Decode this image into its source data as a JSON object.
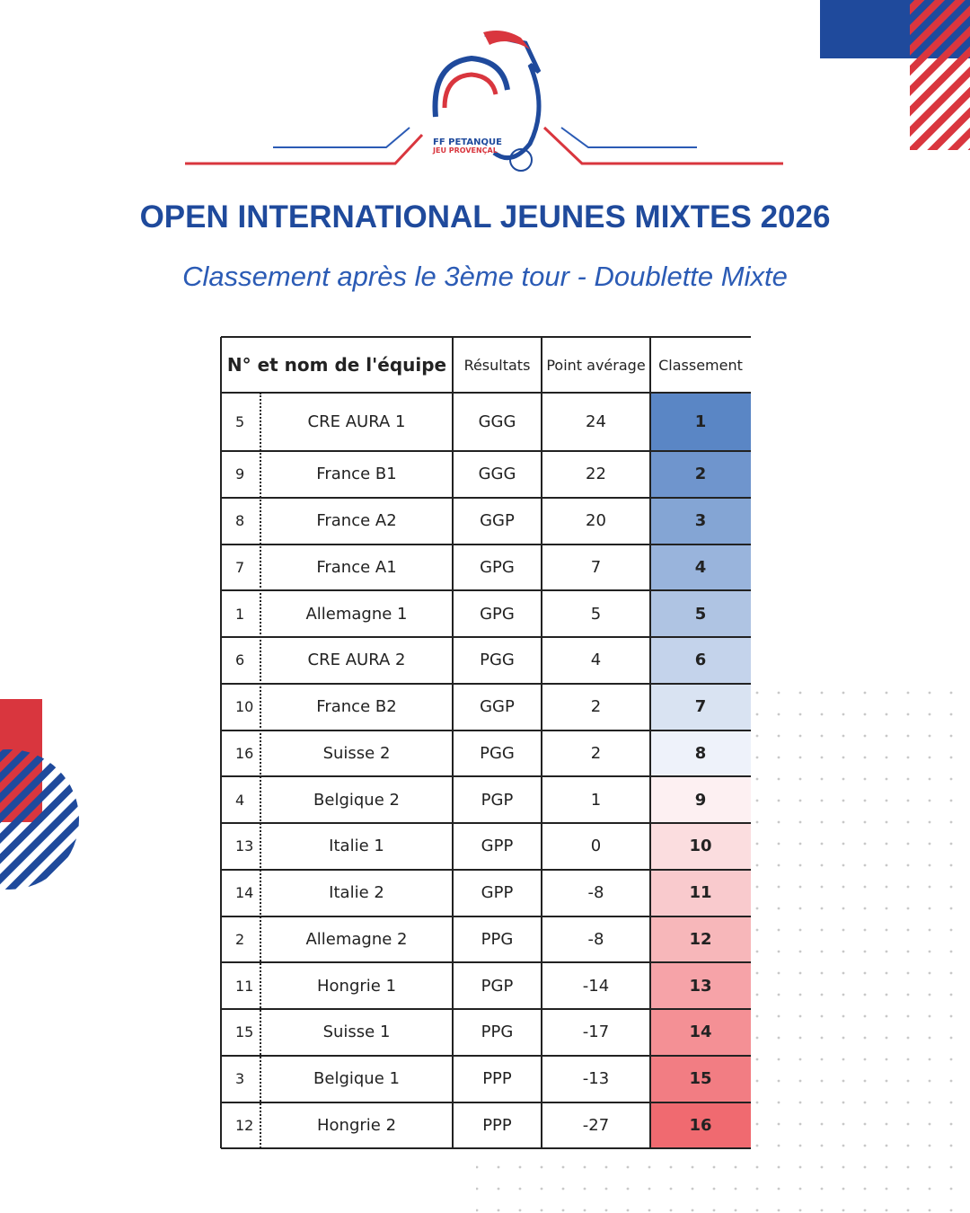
{
  "logo": {
    "line1": "FF PETANQUE",
    "line2": "JEU PROVENÇAL"
  },
  "title": "OPEN INTERNATIONAL JEUNES MIXTES 2026",
  "subtitle": "Classement après le 3ème tour - Doublette Mixte",
  "table": {
    "headers": [
      "N° et nom de l'équipe",
      "Résultats",
      "Point avérage",
      "Classement"
    ],
    "rows": [
      [
        5,
        "CRE AURA 1",
        "GGG",
        24,
        1
      ],
      [
        9,
        "France B1",
        "GGG",
        22,
        2
      ],
      [
        8,
        "France A2",
        "GGP",
        20,
        3
      ],
      [
        7,
        "France A1",
        "GPG",
        7,
        4
      ],
      [
        1,
        "Allemagne 1",
        "GPG",
        5,
        5
      ],
      [
        6,
        "CRE AURA 2",
        "PGG",
        4,
        6
      ],
      [
        10,
        "France B2",
        "GGP",
        2,
        7
      ],
      [
        16,
        "Suisse 2",
        "PGG",
        2,
        8
      ],
      [
        4,
        "Belgique 2",
        "PGP",
        1,
        9
      ],
      [
        13,
        "Italie 1",
        "GPP",
        0,
        10
      ],
      [
        14,
        "Italie 2",
        "GPP",
        -8,
        11
      ],
      [
        2,
        "Allemagne 2",
        "PPG",
        -8,
        12
      ],
      [
        11,
        "Hongrie 1",
        "PGP",
        -14,
        13
      ],
      [
        15,
        "Suisse 1",
        "PPG",
        -17,
        14
      ],
      [
        3,
        "Belgique 1",
        "PPP",
        -13,
        15
      ],
      [
        12,
        "Hongrie 2",
        "PPP",
        -27,
        16
      ]
    ]
  }
}
